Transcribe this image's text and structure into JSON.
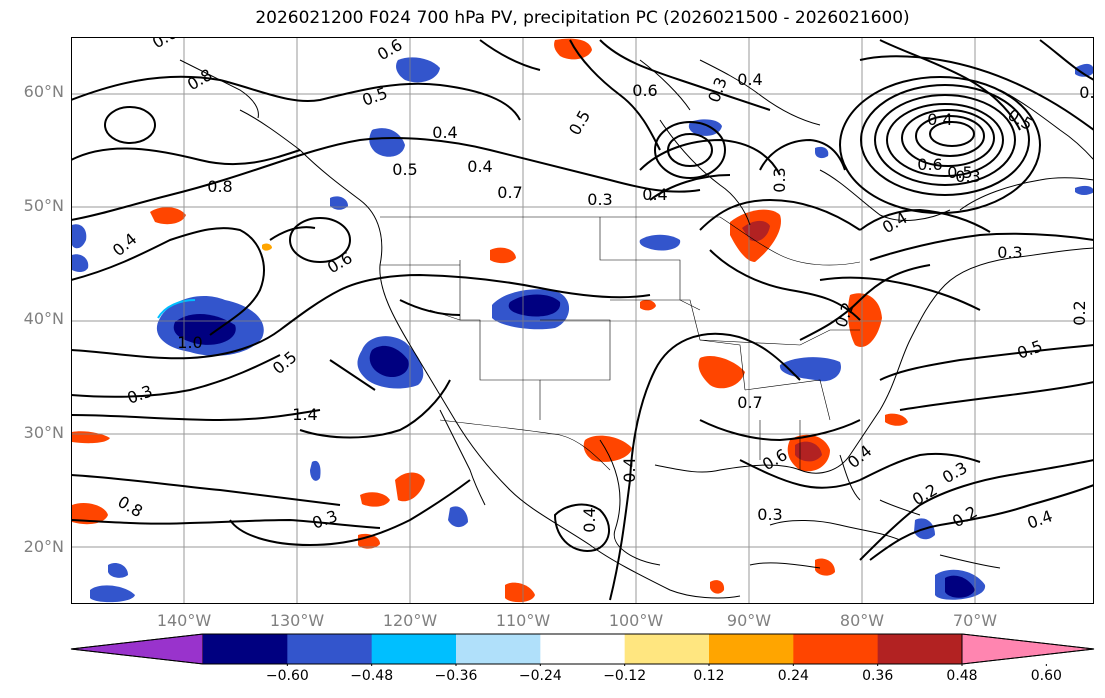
{
  "title": "2026021200 F024 700 hPa PV, precipitation PC (2026021500 - 2026021600)",
  "map": {
    "projection": "PlateCarree",
    "extent": {
      "lon_min": -150,
      "lon_max": -59,
      "lat_min": 15,
      "lat_max": 65
    },
    "lat_ticks": [
      "20°N",
      "30°N",
      "40°N",
      "50°N",
      "60°N"
    ],
    "lon_ticks": [
      "140°W",
      "130°W",
      "120°W",
      "110°W",
      "100°W",
      "90°W",
      "80°W",
      "70°W"
    ],
    "gridlines": true,
    "coastlines": true,
    "borders": true,
    "contour_field": "700 hPa PV",
    "contour_labels": [
      "0.6",
      "0.8",
      "0.5",
      "0.6",
      "0.4",
      "0.5",
      "0.4",
      "0.3",
      "0.5",
      "0.3",
      "0.4",
      "0.6",
      "0.4",
      "0.7",
      "0.8",
      "0.4",
      "0.6",
      "0.5",
      "0.3",
      "1.4",
      "1.0",
      "0.8",
      "0.3",
      "0.4",
      "0.4",
      "0.3",
      "0.7",
      "0.6",
      "0.3",
      "0.4",
      "0.2",
      "0.2",
      "0.3",
      "0.4",
      "0.5",
      "0.2",
      "0.4",
      "0.3",
      "0.5",
      "0.6",
      "0.4",
      "0.3",
      "0.5",
      "0.4",
      "0.2"
    ],
    "contour_label_values": [
      0.6,
      0.8,
      0.5,
      0.6,
      0.4,
      0.5,
      0.4,
      0.3,
      0.5,
      0.3,
      0.4,
      0.6,
      0.4,
      0.7,
      0.8,
      0.4,
      0.6,
      0.5,
      0.3,
      1.4,
      1.0,
      0.8,
      0.3,
      0.4,
      0.4,
      0.3,
      0.7,
      0.6,
      0.3,
      0.4,
      0.2,
      0.2,
      0.3,
      0.4,
      0.5,
      0.2,
      0.4,
      0.3,
      0.5,
      0.6,
      0.4,
      0.3,
      0.5,
      0.4,
      0.2
    ]
  },
  "colorbar": {
    "extend": "both",
    "levels": [
      "−0.60",
      "−0.48",
      "−0.36",
      "−0.24",
      "−0.12",
      "0.12",
      "0.24",
      "0.36",
      "0.48",
      "0.60"
    ],
    "colors": [
      "#9933cc",
      "#000080",
      "#3355cc",
      "#00bfff",
      "#b0e0fa",
      "#ffffff",
      "#ffe680",
      "#ffa500",
      "#ff4500",
      "#b22222",
      "#ff85b0"
    ]
  }
}
